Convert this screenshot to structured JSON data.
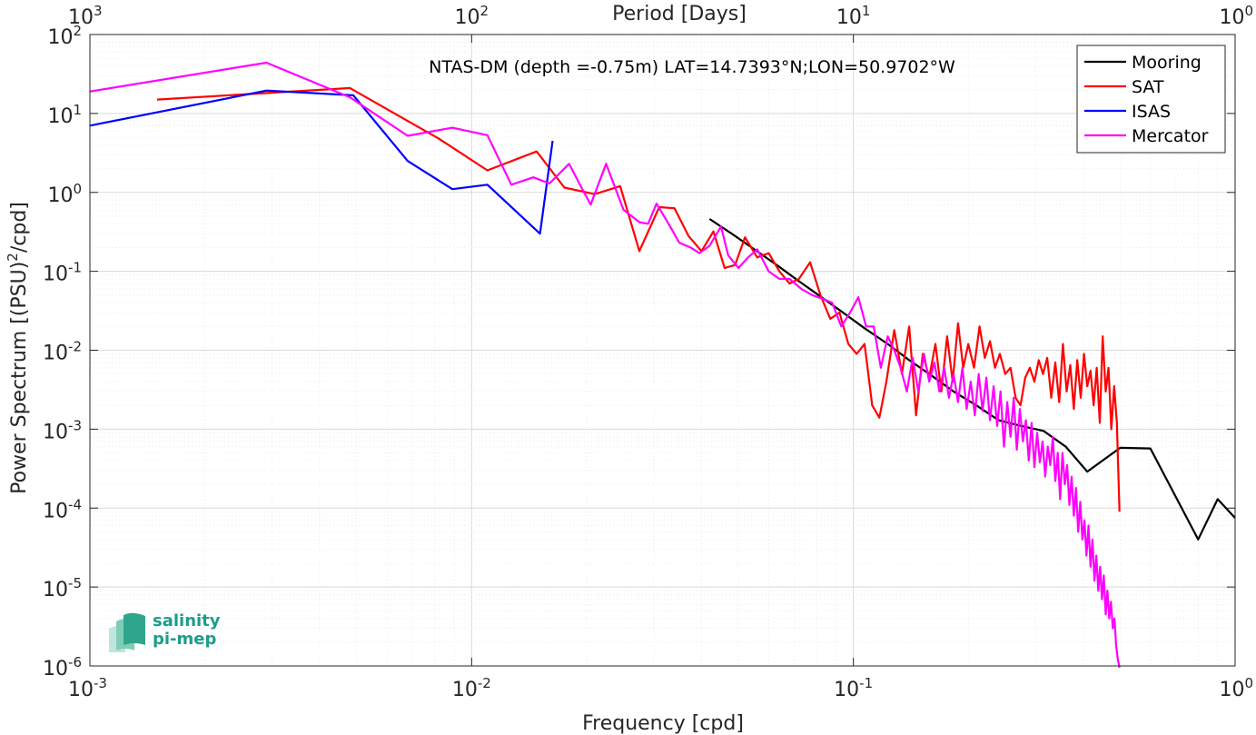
{
  "chart_data": {
    "type": "line",
    "title": "NTAS-DM (depth =-0.75m) LAT=14.7393°N;LON=50.9702°W",
    "xlabel": "Frequency [cpd]",
    "ylabel": "Power Spectrum [(PSU)²/cpd]",
    "top_xlabel": "Period [Days]",
    "x_scale": "log",
    "y_scale": "log",
    "xlim": [
      0.001,
      1
    ],
    "ylim": [
      1e-06,
      100
    ],
    "grid": true,
    "legend_position": "top-right",
    "x_ticks": [
      {
        "value": 0.001,
        "base": "10",
        "exp": "-3"
      },
      {
        "value": 0.01,
        "base": "10",
        "exp": "-2"
      },
      {
        "value": 0.1,
        "base": "10",
        "exp": "-1"
      },
      {
        "value": 1,
        "base": "10",
        "exp": "0"
      }
    ],
    "top_ticks": [
      {
        "value": 0.001,
        "base": "10",
        "exp": "3"
      },
      {
        "value": 0.01,
        "base": "10",
        "exp": "2"
      },
      {
        "value": 0.1,
        "base": "10",
        "exp": "1"
      },
      {
        "value": 1,
        "base": "10",
        "exp": "0"
      }
    ],
    "y_ticks": [
      {
        "value": 1e-06,
        "base": "10",
        "exp": "-6"
      },
      {
        "value": 1e-05,
        "base": "10",
        "exp": "-5"
      },
      {
        "value": 0.0001,
        "base": "10",
        "exp": "-4"
      },
      {
        "value": 0.001,
        "base": "10",
        "exp": "-3"
      },
      {
        "value": 0.01,
        "base": "10",
        "exp": "-2"
      },
      {
        "value": 0.1,
        "base": "10",
        "exp": "-1"
      },
      {
        "value": 1,
        "base": "10",
        "exp": "0"
      },
      {
        "value": 10,
        "base": "10",
        "exp": "1"
      },
      {
        "value": 100,
        "base": "10",
        "exp": "2"
      }
    ],
    "series": [
      {
        "name": "Mooring",
        "color": "#000000",
        "points": [
          [
            0.042,
            0.46
          ],
          [
            0.048,
            0.3
          ],
          [
            0.055,
            0.19
          ],
          [
            0.063,
            0.12
          ],
          [
            0.072,
            0.075
          ],
          [
            0.082,
            0.048
          ],
          [
            0.094,
            0.03
          ],
          [
            0.107,
            0.019
          ],
          [
            0.123,
            0.012
          ],
          [
            0.14,
            0.0075
          ],
          [
            0.16,
            0.0048
          ],
          [
            0.183,
            0.003
          ],
          [
            0.21,
            0.002
          ],
          [
            0.24,
            0.0013
          ],
          [
            0.275,
            0.0011
          ],
          [
            0.315,
            0.00095
          ],
          [
            0.36,
            0.0006
          ],
          [
            0.41,
            0.00029
          ],
          [
            0.5,
            0.00058
          ],
          [
            0.6,
            0.00057
          ],
          [
            0.8,
            4e-05
          ],
          [
            0.9,
            0.00013
          ],
          [
            1.0,
            7.5e-05
          ]
        ]
      },
      {
        "name": "SAT",
        "color": "#ff0000",
        "points": [
          [
            0.0015,
            15
          ],
          [
            0.0048,
            21
          ],
          [
            0.0082,
            4.8
          ],
          [
            0.011,
            1.9
          ],
          [
            0.0148,
            3.3
          ],
          [
            0.0175,
            1.15
          ],
          [
            0.021,
            0.95
          ],
          [
            0.0245,
            1.2
          ],
          [
            0.0275,
            0.18
          ],
          [
            0.031,
            0.65
          ],
          [
            0.034,
            0.63
          ],
          [
            0.037,
            0.28
          ],
          [
            0.04,
            0.18
          ],
          [
            0.043,
            0.32
          ],
          [
            0.046,
            0.11
          ],
          [
            0.049,
            0.12
          ],
          [
            0.052,
            0.27
          ],
          [
            0.056,
            0.15
          ],
          [
            0.06,
            0.17
          ],
          [
            0.064,
            0.1
          ],
          [
            0.068,
            0.07
          ],
          [
            0.072,
            0.08
          ],
          [
            0.077,
            0.13
          ],
          [
            0.082,
            0.05
          ],
          [
            0.087,
            0.025
          ],
          [
            0.092,
            0.03
          ],
          [
            0.097,
            0.012
          ],
          [
            0.102,
            0.009
          ],
          [
            0.107,
            0.012
          ],
          [
            0.112,
            0.002
          ],
          [
            0.117,
            0.0014
          ],
          [
            0.122,
            0.004
          ],
          [
            0.128,
            0.018
          ],
          [
            0.134,
            0.005
          ],
          [
            0.14,
            0.02
          ],
          [
            0.146,
            0.0015
          ],
          [
            0.152,
            0.009
          ],
          [
            0.158,
            0.0045
          ],
          [
            0.164,
            0.012
          ],
          [
            0.17,
            0.003
          ],
          [
            0.176,
            0.015
          ],
          [
            0.182,
            0.004
          ],
          [
            0.188,
            0.022
          ],
          [
            0.194,
            0.006
          ],
          [
            0.2,
            0.012
          ],
          [
            0.207,
            0.006
          ],
          [
            0.214,
            0.02
          ],
          [
            0.221,
            0.008
          ],
          [
            0.228,
            0.013
          ],
          [
            0.235,
            0.006
          ],
          [
            0.242,
            0.009
          ],
          [
            0.25,
            0.005
          ],
          [
            0.258,
            0.006
          ],
          [
            0.266,
            0.0025
          ],
          [
            0.274,
            0.002
          ],
          [
            0.282,
            0.0045
          ],
          [
            0.29,
            0.006
          ],
          [
            0.298,
            0.004
          ],
          [
            0.306,
            0.0075
          ],
          [
            0.314,
            0.005
          ],
          [
            0.322,
            0.008
          ],
          [
            0.33,
            0.0025
          ],
          [
            0.338,
            0.007
          ],
          [
            0.346,
            0.0022
          ],
          [
            0.354,
            0.012
          ],
          [
            0.362,
            0.003
          ],
          [
            0.37,
            0.0065
          ],
          [
            0.378,
            0.0018
          ],
          [
            0.386,
            0.0075
          ],
          [
            0.394,
            0.0025
          ],
          [
            0.402,
            0.009
          ],
          [
            0.41,
            0.0035
          ],
          [
            0.418,
            0.0055
          ],
          [
            0.426,
            0.002
          ],
          [
            0.434,
            0.006
          ],
          [
            0.442,
            0.0012
          ],
          [
            0.45,
            0.015
          ],
          [
            0.458,
            0.003
          ],
          [
            0.466,
            0.006
          ],
          [
            0.474,
            0.001
          ],
          [
            0.482,
            0.0035
          ],
          [
            0.49,
            0.0012
          ],
          [
            0.498,
            9e-05
          ]
        ]
      },
      {
        "name": "ISAS",
        "color": "#0000ff",
        "points": [
          [
            0.001,
            7
          ],
          [
            0.0029,
            19.5
          ],
          [
            0.0049,
            17
          ],
          [
            0.0068,
            2.5
          ],
          [
            0.0089,
            1.1
          ],
          [
            0.011,
            1.25
          ],
          [
            0.0151,
            0.3
          ],
          [
            0.0163,
            4.5
          ]
        ]
      },
      {
        "name": "Mercator",
        "color": "#ff00ff",
        "points": [
          [
            0.001,
            19
          ],
          [
            0.0029,
            44
          ],
          [
            0.0048,
            16
          ],
          [
            0.0068,
            5.2
          ],
          [
            0.0089,
            6.6
          ],
          [
            0.011,
            5.3
          ],
          [
            0.0127,
            1.25
          ],
          [
            0.0145,
            1.55
          ],
          [
            0.016,
            1.3
          ],
          [
            0.018,
            2.3
          ],
          [
            0.0195,
            1.1
          ],
          [
            0.0205,
            0.7
          ],
          [
            0.0225,
            2.3
          ],
          [
            0.025,
            0.6
          ],
          [
            0.0275,
            0.42
          ],
          [
            0.029,
            0.4
          ],
          [
            0.0305,
            0.72
          ],
          [
            0.033,
            0.38
          ],
          [
            0.035,
            0.23
          ],
          [
            0.0375,
            0.2
          ],
          [
            0.0395,
            0.17
          ],
          [
            0.042,
            0.21
          ],
          [
            0.045,
            0.37
          ],
          [
            0.047,
            0.16
          ],
          [
            0.05,
            0.11
          ],
          [
            0.053,
            0.15
          ],
          [
            0.056,
            0.19
          ],
          [
            0.06,
            0.1
          ],
          [
            0.064,
            0.08
          ],
          [
            0.068,
            0.08
          ],
          [
            0.073,
            0.06
          ],
          [
            0.078,
            0.05
          ],
          [
            0.083,
            0.045
          ],
          [
            0.088,
            0.04
          ],
          [
            0.093,
            0.02
          ],
          [
            0.098,
            0.03
          ],
          [
            0.103,
            0.047
          ],
          [
            0.108,
            0.02
          ],
          [
            0.113,
            0.02
          ],
          [
            0.118,
            0.006
          ],
          [
            0.123,
            0.015
          ],
          [
            0.128,
            0.01
          ],
          [
            0.133,
            0.006
          ],
          [
            0.138,
            0.003
          ],
          [
            0.143,
            0.008
          ],
          [
            0.148,
            0.003
          ],
          [
            0.153,
            0.009
          ],
          [
            0.158,
            0.004
          ],
          [
            0.163,
            0.007
          ],
          [
            0.168,
            0.003
          ],
          [
            0.173,
            0.006
          ],
          [
            0.178,
            0.0025
          ],
          [
            0.183,
            0.005
          ],
          [
            0.188,
            0.0022
          ],
          [
            0.193,
            0.006
          ],
          [
            0.198,
            0.0018
          ],
          [
            0.203,
            0.004
          ],
          [
            0.208,
            0.0015
          ],
          [
            0.213,
            0.005
          ],
          [
            0.218,
            0.0017
          ],
          [
            0.223,
            0.0045
          ],
          [
            0.228,
            0.0013
          ],
          [
            0.233,
            0.0035
          ],
          [
            0.238,
            0.0011
          ],
          [
            0.243,
            0.003
          ],
          [
            0.248,
            0.0006
          ],
          [
            0.253,
            0.0022
          ],
          [
            0.258,
            0.0008
          ],
          [
            0.263,
            0.0025
          ],
          [
            0.268,
            0.00055
          ],
          [
            0.273,
            0.0018
          ],
          [
            0.278,
            0.0007
          ],
          [
            0.283,
            0.0013
          ],
          [
            0.288,
            0.0004
          ],
          [
            0.293,
            0.0012
          ],
          [
            0.298,
            0.00033
          ],
          [
            0.303,
            0.0009
          ],
          [
            0.308,
            0.00038
          ],
          [
            0.313,
            0.0007
          ],
          [
            0.318,
            0.00025
          ],
          [
            0.323,
            0.0006
          ],
          [
            0.328,
            0.00035
          ],
          [
            0.333,
            0.0008
          ],
          [
            0.338,
            0.00022
          ],
          [
            0.343,
            0.0005
          ],
          [
            0.348,
            0.00013
          ],
          [
            0.353,
            0.0005
          ],
          [
            0.358,
            0.0002
          ],
          [
            0.363,
            0.00035
          ],
          [
            0.368,
            0.00011
          ],
          [
            0.373,
            0.00025
          ],
          [
            0.378,
            8e-05
          ],
          [
            0.383,
            0.00018
          ],
          [
            0.388,
            5e-05
          ],
          [
            0.393,
            0.00012
          ],
          [
            0.398,
            4e-05
          ],
          [
            0.403,
            7e-05
          ],
          [
            0.408,
            2.5e-05
          ],
          [
            0.413,
            6e-05
          ],
          [
            0.418,
            1.8e-05
          ],
          [
            0.423,
            4e-05
          ],
          [
            0.428,
            1.2e-05
          ],
          [
            0.433,
            2.5e-05
          ],
          [
            0.438,
            9e-06
          ],
          [
            0.443,
            1.8e-05
          ],
          [
            0.448,
            7e-06
          ],
          [
            0.453,
            1.4e-05
          ],
          [
            0.458,
            4.5e-06
          ],
          [
            0.463,
            9e-06
          ],
          [
            0.468,
            4e-06
          ],
          [
            0.473,
            6.5e-06
          ],
          [
            0.478,
            3e-06
          ],
          [
            0.483,
            4e-06
          ],
          [
            0.488,
            1.8e-06
          ],
          [
            0.493,
            1.2e-06
          ],
          [
            0.498,
            9.5e-07
          ]
        ]
      }
    ]
  },
  "logo": {
    "line1": "salinity",
    "line2": "pi-mep",
    "color": "#1b9e8a"
  }
}
